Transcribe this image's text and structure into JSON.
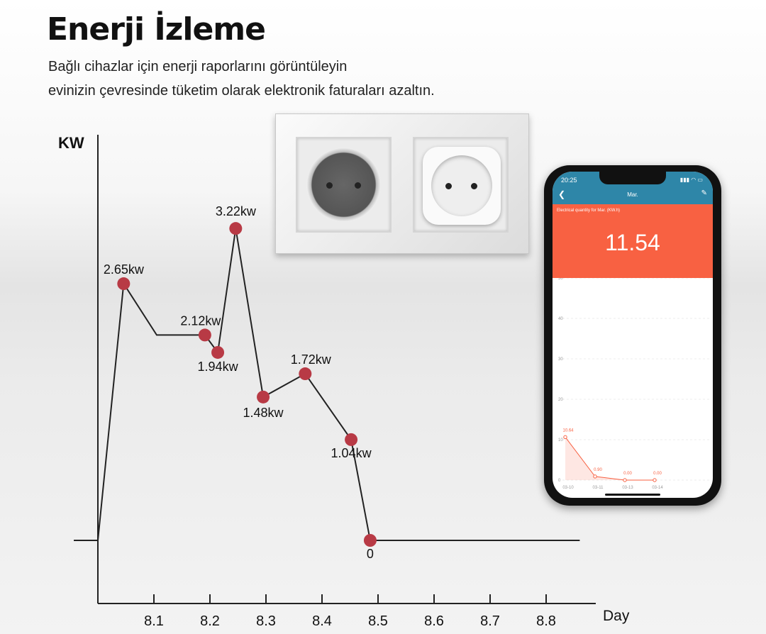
{
  "header": {
    "title": "Enerji İzleme",
    "subtitle_line1": "Bağlı cihazlar için enerji raporlarını görüntüleyin",
    "subtitle_line2": "evinizin çevresinde tüketim olarak elektronik faturaları azaltın."
  },
  "colors": {
    "point": "#b83a45",
    "line": "#222222",
    "phone_header": "#2e86a8",
    "phone_accent": "#f86142"
  },
  "chart_data": [
    {
      "type": "line",
      "xlabel": "Day",
      "ylabel": "KW",
      "x_ticks": [
        "8.1",
        "8.2",
        "8.3",
        "8.4",
        "8.5",
        "8.6",
        "8.7",
        "8.8"
      ],
      "xlim": [
        8.0,
        8.86
      ],
      "ylim": [
        0,
        3.5
      ],
      "grid": false,
      "points": [
        {
          "x": 8.046,
          "y": 2.65,
          "label": "2.65kw"
        },
        {
          "x": 8.191,
          "y": 2.12,
          "label": "2.12kw"
        },
        {
          "x": 8.214,
          "y": 1.94,
          "label": "1.94kw"
        },
        {
          "x": 8.246,
          "y": 3.22,
          "label": "3.22kw"
        },
        {
          "x": 8.295,
          "y": 1.48,
          "label": "1.48kw"
        },
        {
          "x": 8.37,
          "y": 1.72,
          "label": "1.72kw"
        },
        {
          "x": 8.452,
          "y": 1.04,
          "label": "1.04kw"
        },
        {
          "x": 8.486,
          "y": 0,
          "label": "0"
        }
      ],
      "line_path": [
        [
          7.957,
          0
        ],
        [
          8.0,
          0
        ],
        [
          8.046,
          2.65
        ],
        [
          8.105,
          2.12
        ],
        [
          8.191,
          2.12
        ],
        [
          8.214,
          1.94
        ],
        [
          8.246,
          3.22
        ],
        [
          8.295,
          1.48
        ],
        [
          8.37,
          1.72
        ],
        [
          8.452,
          1.04
        ],
        [
          8.486,
          0
        ],
        [
          8.86,
          0
        ]
      ]
    },
    {
      "type": "area",
      "title": "Electrical quantity for Mar. (KW.h)",
      "total": "11.54",
      "categories": [
        "03-10",
        "03-11",
        "03-13",
        "03-14"
      ],
      "values": [
        10.64,
        0.9,
        0.0,
        0.0
      ],
      "value_labels": [
        "10.64",
        "0.90",
        "0.00",
        "0.00"
      ],
      "y_ticks": [
        "50",
        "40",
        "30",
        "20",
        "10",
        "0"
      ],
      "ylim": [
        0,
        50
      ]
    }
  ],
  "phone": {
    "time": "20:25",
    "status_icons": "▮▮▮ ◠ ▭",
    "header_title": "Mar.",
    "back_icon": "chevron-left",
    "edit_icon": "pencil"
  }
}
